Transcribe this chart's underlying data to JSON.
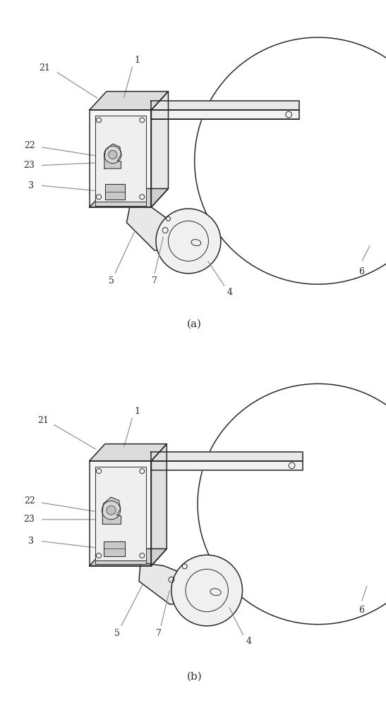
{
  "bg_color": "#ffffff",
  "line_color": "#2a2a2a",
  "label_color": "#2a2a2a",
  "leader_color": "#888888",
  "fig_width": 5.47,
  "fig_height": 10.0,
  "dpi": 100,
  "caption_a": "(a)",
  "caption_b": "(b)"
}
